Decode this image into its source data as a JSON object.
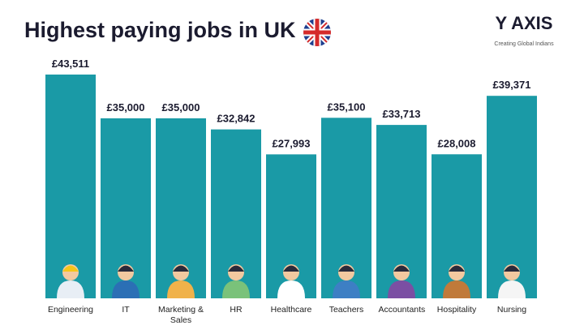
{
  "chart_data": {
    "type": "bar",
    "title": "Highest paying jobs in UK",
    "categories": [
      "Engineering",
      "IT",
      "Marketing & Sales",
      "HR",
      "Healthcare",
      "Teachers",
      "Accountants",
      "Hospitality",
      "Nursing"
    ],
    "values": [
      43511,
      35000,
      35000,
      32842,
      27993,
      35100,
      33713,
      28008,
      39371
    ],
    "value_labels": [
      "£43,511",
      "£35,000",
      "£35,000",
      "£32,842",
      "£27,993",
      "£35,100",
      "£33,713",
      "£28,008",
      "£39,371"
    ],
    "color": "#1a9aa6",
    "ylim": [
      0,
      45000
    ]
  },
  "brand": {
    "name": "Y AXIS",
    "tagline": "Creating Global Indians"
  }
}
